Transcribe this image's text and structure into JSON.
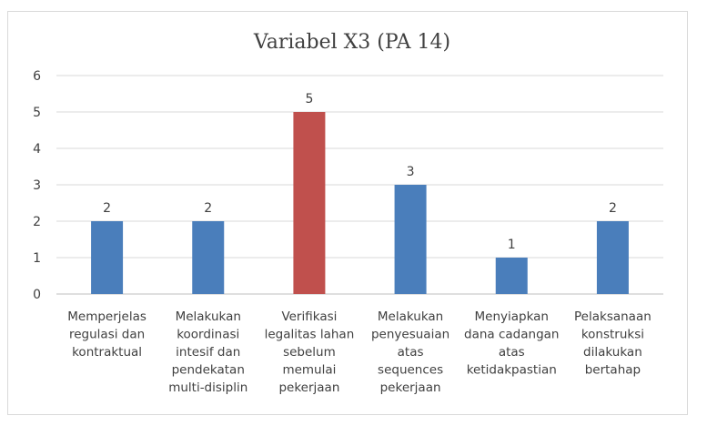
{
  "chart_data": {
    "type": "bar",
    "title": "Variabel X3 (PA 14)",
    "categories": [
      [
        "Memperjelas",
        "regulasi dan",
        "kontraktual"
      ],
      [
        "Melakukan",
        "koordinasi",
        "intesif dan",
        "pendekatan",
        "multi-disiplin"
      ],
      [
        "Verifikasi",
        "legalitas lahan",
        "sebelum",
        "memulai",
        "pekerjaan"
      ],
      [
        "Melakukan",
        "penyesuaian",
        "atas",
        "sequences",
        "pekerjaan"
      ],
      [
        "Menyiapkan",
        "dana cadangan",
        "atas",
        "ketidakpastian"
      ],
      [
        "Pelaksanaan",
        "konstruksi",
        "dilakukan",
        "bertahap"
      ]
    ],
    "values": [
      2,
      2,
      5,
      3,
      1,
      2
    ],
    "bar_colors": [
      "#4a7ebb",
      "#4a7ebb",
      "#c0504d",
      "#4a7ebb",
      "#4a7ebb",
      "#4a7ebb"
    ],
    "ylim": [
      0,
      6
    ],
    "yticks": [
      0,
      1,
      2,
      3,
      4,
      5,
      6
    ],
    "grid": true,
    "data_labels": true,
    "legend": "none"
  }
}
